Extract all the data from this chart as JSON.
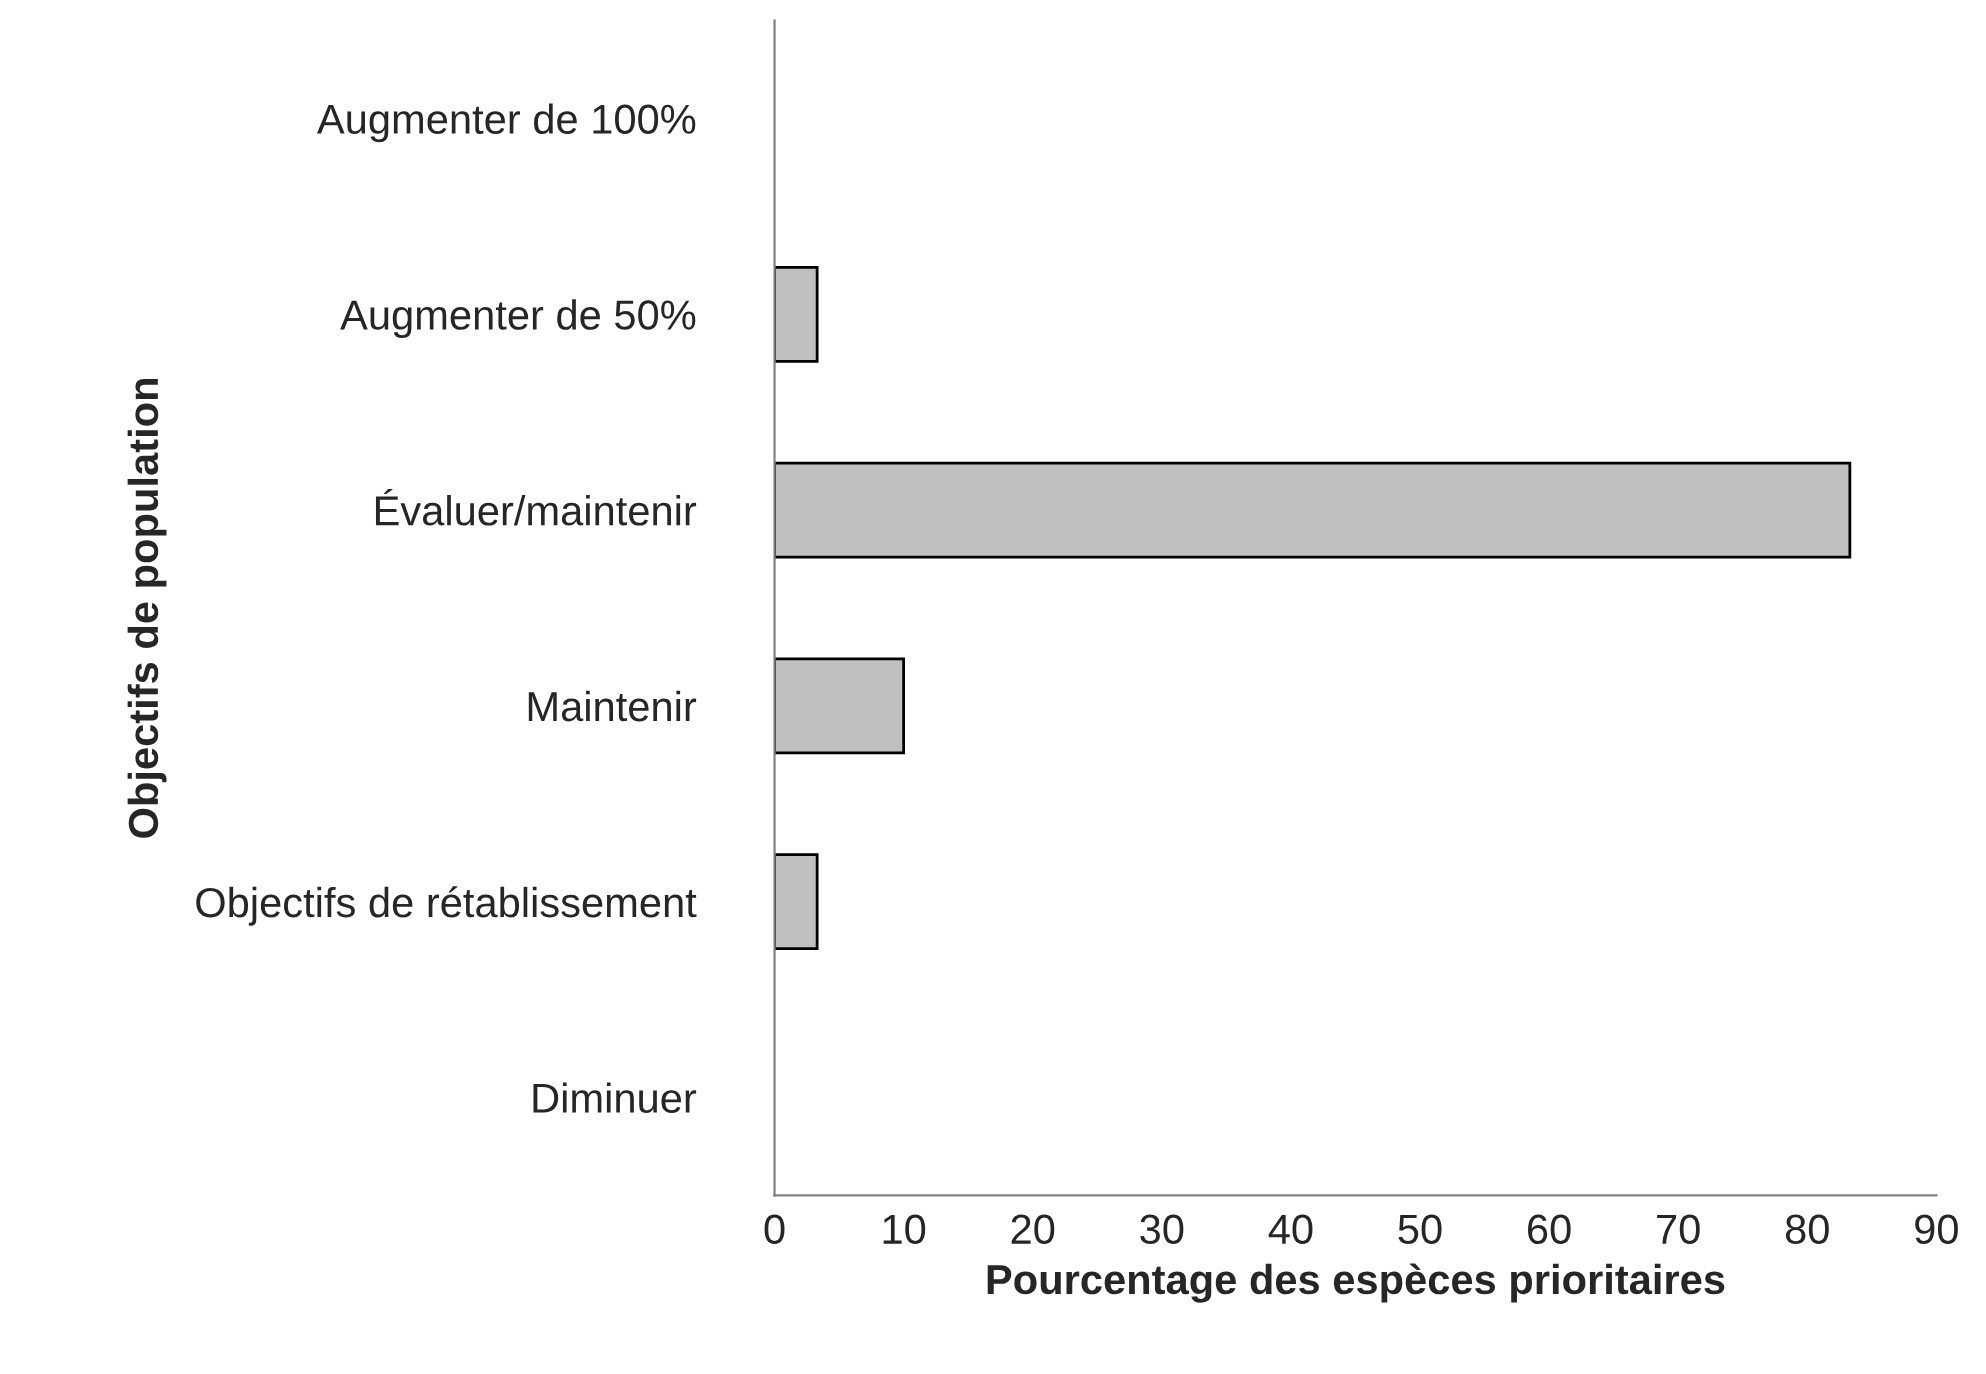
{
  "chart_data": {
    "type": "bar",
    "orientation": "horizontal",
    "xlabel": "Pourcentage des espèces prioritaires",
    "ylabel": "Objectifs de population",
    "categories": [
      "Augmenter de 100%",
      "Augmenter de 50%",
      "Évaluer/maintenir",
      "Maintenir",
      "Objectifs de rétablissement",
      "Diminuer"
    ],
    "values": [
      0,
      3.3,
      83.3,
      10,
      3.3,
      0
    ],
    "color": "#bfbfbf",
    "xlim": [
      0,
      90
    ],
    "xticks": [
      0,
      10,
      20,
      30,
      40,
      50,
      60,
      70,
      80,
      90
    ],
    "grid": false,
    "legend": false
  }
}
